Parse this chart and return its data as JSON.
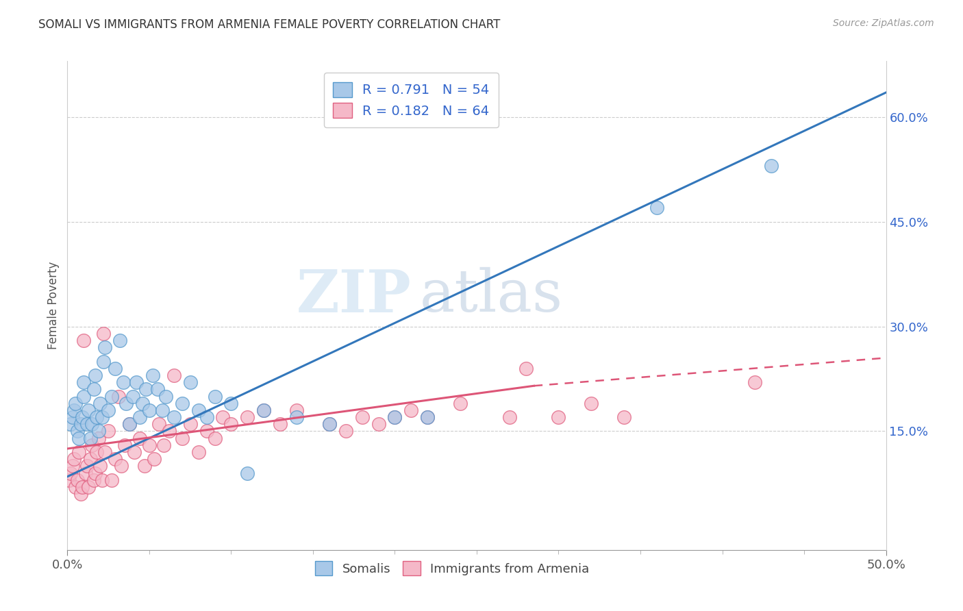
{
  "title": "SOMALI VS IMMIGRANTS FROM ARMENIA FEMALE POVERTY CORRELATION CHART",
  "source": "Source: ZipAtlas.com",
  "ylabel": "Female Poverty",
  "xlim": [
    0.0,
    0.5
  ],
  "ylim": [
    -0.02,
    0.68
  ],
  "right_yticks": [
    0.15,
    0.3,
    0.45,
    0.6
  ],
  "right_yticklabels": [
    "15.0%",
    "30.0%",
    "45.0%",
    "60.0%"
  ],
  "xticks_major": [
    0.0,
    0.5
  ],
  "xticklabels_major": [
    "0.0%",
    "50.0%"
  ],
  "xticks_minor": [
    0.05,
    0.1,
    0.15,
    0.2,
    0.25,
    0.3,
    0.35,
    0.4,
    0.45
  ],
  "blue_fill": "#a8c8e8",
  "blue_edge": "#5599cc",
  "pink_fill": "#f5b8c8",
  "pink_edge": "#e06080",
  "blue_line": "#3377bb",
  "pink_line": "#dd5577",
  "legend_color": "#3366cc",
  "R_blue": 0.791,
  "N_blue": 54,
  "R_pink": 0.182,
  "N_pink": 64,
  "watermark_zip": "ZIP",
  "watermark_atlas": "atlas",
  "bg": "#ffffff",
  "grid_color": "#cccccc",
  "blue_trend_x0": 0.0,
  "blue_trend_y0": 0.085,
  "blue_trend_x1": 0.5,
  "blue_trend_y1": 0.635,
  "pink_trend_x0": 0.0,
  "pink_trend_y0": 0.125,
  "pink_trend_solid_x1": 0.285,
  "pink_trend_solid_y1": 0.215,
  "pink_trend_dash_x1": 0.5,
  "pink_trend_dash_y1": 0.255,
  "somali_x": [
    0.002,
    0.003,
    0.004,
    0.005,
    0.006,
    0.007,
    0.008,
    0.009,
    0.01,
    0.01,
    0.012,
    0.013,
    0.014,
    0.015,
    0.016,
    0.017,
    0.018,
    0.019,
    0.02,
    0.021,
    0.022,
    0.023,
    0.025,
    0.027,
    0.029,
    0.032,
    0.034,
    0.036,
    0.038,
    0.04,
    0.042,
    0.044,
    0.046,
    0.048,
    0.05,
    0.052,
    0.055,
    0.058,
    0.06,
    0.065,
    0.07,
    0.075,
    0.08,
    0.085,
    0.09,
    0.1,
    0.11,
    0.12,
    0.14,
    0.16,
    0.2,
    0.22,
    0.36,
    0.43
  ],
  "somali_y": [
    0.16,
    0.17,
    0.18,
    0.19,
    0.15,
    0.14,
    0.16,
    0.17,
    0.2,
    0.22,
    0.16,
    0.18,
    0.14,
    0.16,
    0.21,
    0.23,
    0.17,
    0.15,
    0.19,
    0.17,
    0.25,
    0.27,
    0.18,
    0.2,
    0.24,
    0.28,
    0.22,
    0.19,
    0.16,
    0.2,
    0.22,
    0.17,
    0.19,
    0.21,
    0.18,
    0.23,
    0.21,
    0.18,
    0.2,
    0.17,
    0.19,
    0.22,
    0.18,
    0.17,
    0.2,
    0.19,
    0.09,
    0.18,
    0.17,
    0.16,
    0.17,
    0.17,
    0.47,
    0.53
  ],
  "armenia_x": [
    0.001,
    0.002,
    0.003,
    0.004,
    0.005,
    0.006,
    0.007,
    0.008,
    0.009,
    0.01,
    0.011,
    0.012,
    0.013,
    0.014,
    0.015,
    0.016,
    0.017,
    0.018,
    0.019,
    0.02,
    0.021,
    0.022,
    0.023,
    0.025,
    0.027,
    0.029,
    0.031,
    0.033,
    0.035,
    0.038,
    0.041,
    0.044,
    0.047,
    0.05,
    0.053,
    0.056,
    0.059,
    0.062,
    0.065,
    0.07,
    0.075,
    0.08,
    0.085,
    0.09,
    0.095,
    0.1,
    0.11,
    0.12,
    0.13,
    0.14,
    0.16,
    0.17,
    0.18,
    0.19,
    0.2,
    0.21,
    0.22,
    0.24,
    0.27,
    0.28,
    0.3,
    0.32,
    0.34,
    0.42
  ],
  "armenia_y": [
    0.08,
    0.09,
    0.1,
    0.11,
    0.07,
    0.08,
    0.12,
    0.06,
    0.07,
    0.28,
    0.09,
    0.1,
    0.07,
    0.11,
    0.13,
    0.08,
    0.09,
    0.12,
    0.14,
    0.1,
    0.08,
    0.29,
    0.12,
    0.15,
    0.08,
    0.11,
    0.2,
    0.1,
    0.13,
    0.16,
    0.12,
    0.14,
    0.1,
    0.13,
    0.11,
    0.16,
    0.13,
    0.15,
    0.23,
    0.14,
    0.16,
    0.12,
    0.15,
    0.14,
    0.17,
    0.16,
    0.17,
    0.18,
    0.16,
    0.18,
    0.16,
    0.15,
    0.17,
    0.16,
    0.17,
    0.18,
    0.17,
    0.19,
    0.17,
    0.24,
    0.17,
    0.19,
    0.17,
    0.22
  ]
}
